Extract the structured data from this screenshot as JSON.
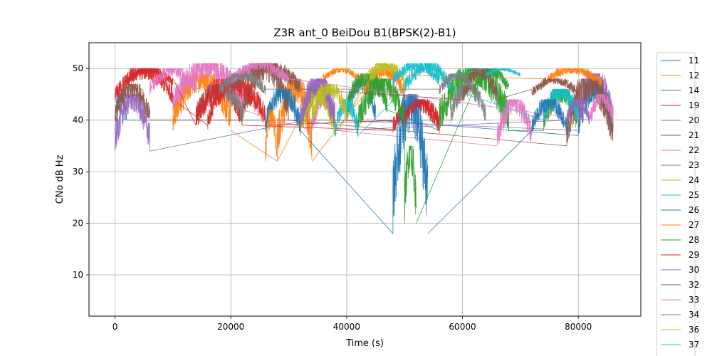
{
  "chart_data": {
    "type": "line",
    "title": "Z3R ant_0 BeiDou B1(BPSK(2)-B1)",
    "xlabel": "Time (s)",
    "ylabel": "CNo dB Hz",
    "xlim": [
      -4500,
      90800
    ],
    "ylim": [
      2,
      55
    ],
    "xticks": [
      0,
      20000,
      40000,
      60000,
      80000
    ],
    "yticks": [
      10,
      20,
      30,
      40,
      50
    ],
    "grid": true,
    "legend_position": "right-outside",
    "series": [
      {
        "name": "11",
        "color": "#1f77b4",
        "segments": [
          [
            0,
            2000,
            38,
            45
          ],
          [
            40000,
            45000,
            38,
            48
          ],
          [
            80000,
            86000,
            35,
            47
          ]
        ]
      },
      {
        "name": "12",
        "color": "#ff7f0e",
        "segments": [
          [
            10000,
            20000,
            36,
            49
          ],
          [
            28000,
            34000,
            30,
            48
          ],
          [
            43000,
            50000,
            43,
            50
          ]
        ]
      },
      {
        "name": "14",
        "color": "#2ca02c",
        "segments": [
          [
            40000,
            47000,
            40,
            49
          ],
          [
            56000,
            68000,
            36,
            50
          ],
          [
            74000,
            80000,
            36,
            46
          ]
        ]
      },
      {
        "name": "19",
        "color": "#d62728",
        "segments": [
          [
            0,
            10000,
            42,
            50
          ],
          [
            16000,
            22000,
            37,
            46
          ],
          [
            48000,
            56000,
            36,
            44
          ]
        ]
      },
      {
        "name": "20",
        "color": "#9467bd",
        "segments": [
          [
            0,
            6000,
            32,
            45
          ],
          [
            33000,
            38000,
            38,
            48
          ],
          [
            80000,
            86000,
            36,
            49
          ]
        ]
      },
      {
        "name": "21",
        "color": "#8c564b",
        "segments": [
          [
            0,
            6000,
            38,
            47
          ],
          [
            22000,
            30000,
            38,
            51
          ],
          [
            78000,
            86000,
            33,
            48
          ]
        ]
      },
      {
        "name": "22",
        "color": "#e377c2",
        "segments": [
          [
            10000,
            22000,
            40,
            51
          ],
          [
            34000,
            38000,
            36,
            45
          ],
          [
            66000,
            72000,
            33,
            44
          ]
        ]
      },
      {
        "name": "23",
        "color": "#7f7f7f",
        "segments": [
          [
            14000,
            22000,
            38,
            47
          ],
          [
            58000,
            64000,
            38,
            47
          ]
        ]
      },
      {
        "name": "24",
        "color": "#bcbd22",
        "segments": [
          [
            32000,
            38000,
            35,
            46
          ],
          [
            44000,
            50000,
            46,
            51
          ]
        ]
      },
      {
        "name": "25",
        "color": "#17becf",
        "segments": [
          [
            38000,
            42000,
            35,
            44
          ],
          [
            50000,
            58000,
            44,
            51
          ],
          [
            74000,
            80000,
            38,
            46
          ]
        ]
      },
      {
        "name": "26",
        "color": "#1f77b4",
        "segments": [
          [
            26000,
            32000,
            36,
            46
          ],
          [
            48000,
            54000,
            16,
            45
          ],
          [
            72000,
            78000,
            36,
            44
          ]
        ]
      },
      {
        "name": "27",
        "color": "#ff7f0e",
        "segments": [
          [
            26000,
            28000,
            30,
            42
          ],
          [
            36000,
            42000,
            47,
            50
          ],
          [
            74000,
            84000,
            46,
            50
          ]
        ]
      },
      {
        "name": "28",
        "color": "#2ca02c",
        "segments": [
          [
            42000,
            50000,
            36,
            48
          ],
          [
            50000,
            52000,
            18,
            35
          ],
          [
            62000,
            68000,
            44,
            50
          ]
        ]
      },
      {
        "name": "29",
        "color": "#d62728",
        "segments": [
          [
            2000,
            10000,
            46,
            50
          ],
          [
            14000,
            26000,
            37,
            48
          ],
          [
            50000,
            56000,
            38,
            44
          ]
        ]
      },
      {
        "name": "30",
        "color": "#9467bd",
        "segments": [
          [
            32000,
            38000,
            36,
            48
          ],
          [
            78000,
            82000,
            38,
            44
          ]
        ]
      },
      {
        "name": "32",
        "color": "#8c564b",
        "segments": [
          [
            20000,
            32000,
            44,
            51
          ],
          [
            60000,
            66000,
            42,
            50
          ],
          [
            72000,
            80000,
            44,
            48
          ]
        ]
      },
      {
        "name": "33",
        "color": "#e377c2",
        "segments": [
          [
            6000,
            14000,
            44,
            50
          ],
          [
            20000,
            30000,
            46,
            51
          ],
          [
            82000,
            86000,
            38,
            45
          ]
        ]
      },
      {
        "name": "34",
        "color": "#7f7f7f",
        "segments": [
          [
            18000,
            26000,
            44,
            49
          ],
          [
            56000,
            62000,
            44,
            49
          ]
        ]
      },
      {
        "name": "36",
        "color": "#bcbd22",
        "segments": [
          [
            34000,
            40000,
            38,
            47
          ],
          [
            44000,
            48000,
            48,
            51
          ]
        ]
      },
      {
        "name": "37",
        "color": "#17becf",
        "segments": [
          [
            48000,
            56000,
            46,
            51
          ],
          [
            64000,
            70000,
            48,
            50
          ]
        ]
      }
    ],
    "legend_entries": [
      "11",
      "12",
      "14",
      "19",
      "20",
      "21",
      "22",
      "23",
      "24",
      "25",
      "26",
      "27",
      "28",
      "29",
      "30",
      "32",
      "33",
      "34",
      "36",
      "37"
    ]
  }
}
